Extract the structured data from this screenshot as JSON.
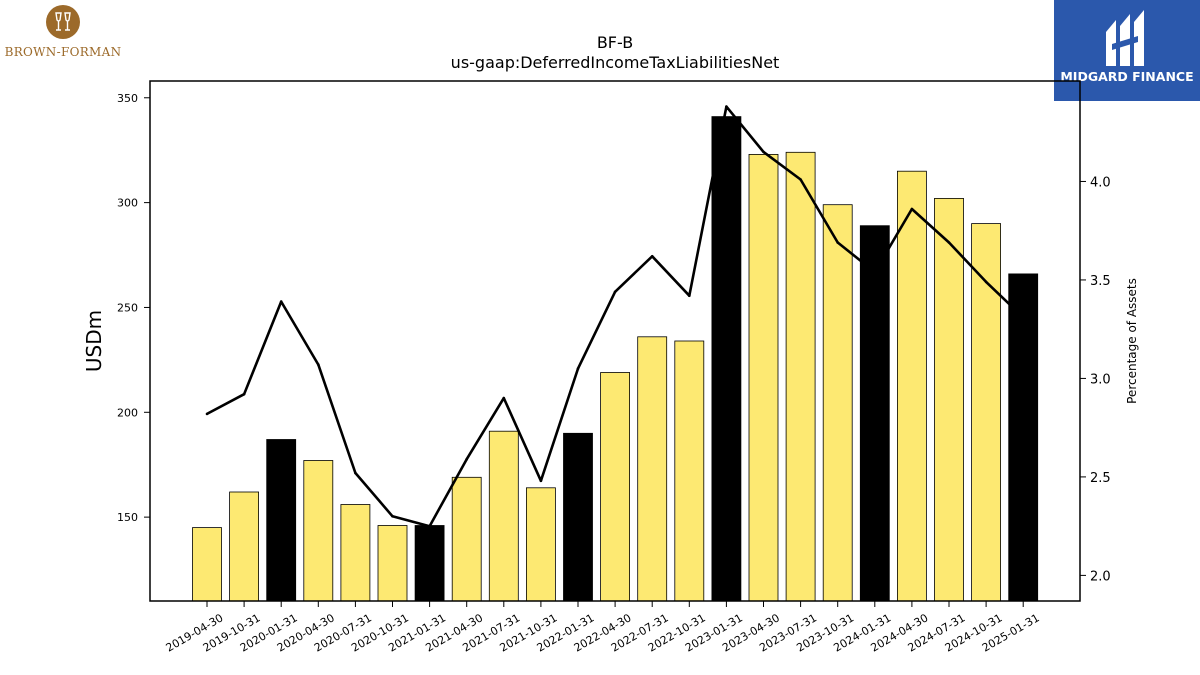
{
  "logos": {
    "left": {
      "text": "BROWN-FORMAN",
      "color": "#9c6a2a"
    },
    "right": {
      "text": "MIDGARD FINANCE",
      "color": "#2b58ac"
    }
  },
  "chart_data": {
    "type": "bar",
    "title": "BF-B",
    "subtitle": "us-gaap:DeferredIncomeTaxLiabilitiesNet",
    "xlabel": "",
    "ylabel": "USDm",
    "y2label": "Percentage of Assets",
    "ylim": [
      110,
      358
    ],
    "y2lim": [
      1.87,
      4.51
    ],
    "yticks": [
      150,
      200,
      250,
      300,
      350
    ],
    "y2ticks": [
      "2.0",
      "2.5",
      "3.0",
      "3.5",
      "4.0"
    ],
    "categories": [
      "2019-04-30",
      "2019-10-31",
      "2020-01-31",
      "2020-04-30",
      "2020-07-31",
      "2020-10-31",
      "2021-01-31",
      "2021-04-30",
      "2021-07-31",
      "2021-10-31",
      "2022-01-31",
      "2022-04-30",
      "2022-07-31",
      "2022-10-31",
      "2023-01-31",
      "2023-04-30",
      "2023-07-31",
      "2023-10-31",
      "2024-01-31",
      "2024-04-30",
      "2024-07-31",
      "2024-10-31",
      "2025-01-31"
    ],
    "series": [
      {
        "type": "bar",
        "axis": "left",
        "values": [
          145,
          162,
          187,
          177,
          156,
          146,
          146,
          169,
          191,
          164,
          190,
          219,
          236,
          234,
          341,
          323,
          324,
          299,
          289,
          315,
          302,
          290,
          266
        ],
        "highlight": [
          false,
          false,
          true,
          false,
          false,
          false,
          true,
          false,
          false,
          false,
          true,
          false,
          false,
          false,
          true,
          false,
          false,
          false,
          true,
          false,
          false,
          false,
          true
        ]
      },
      {
        "type": "line",
        "axis": "right",
        "values": [
          2.82,
          2.92,
          3.39,
          3.07,
          2.52,
          2.3,
          2.25,
          2.59,
          2.9,
          2.48,
          3.05,
          3.44,
          3.62,
          3.42,
          4.38,
          4.15,
          4.01,
          3.69,
          3.54,
          3.86,
          3.69,
          3.49,
          3.31
        ]
      }
    ],
    "colors": {
      "bar": "#fde972",
      "bar_highlight": "#000000",
      "line": "#000000",
      "edge": "#000000"
    },
    "grid": false,
    "legend": "none"
  }
}
